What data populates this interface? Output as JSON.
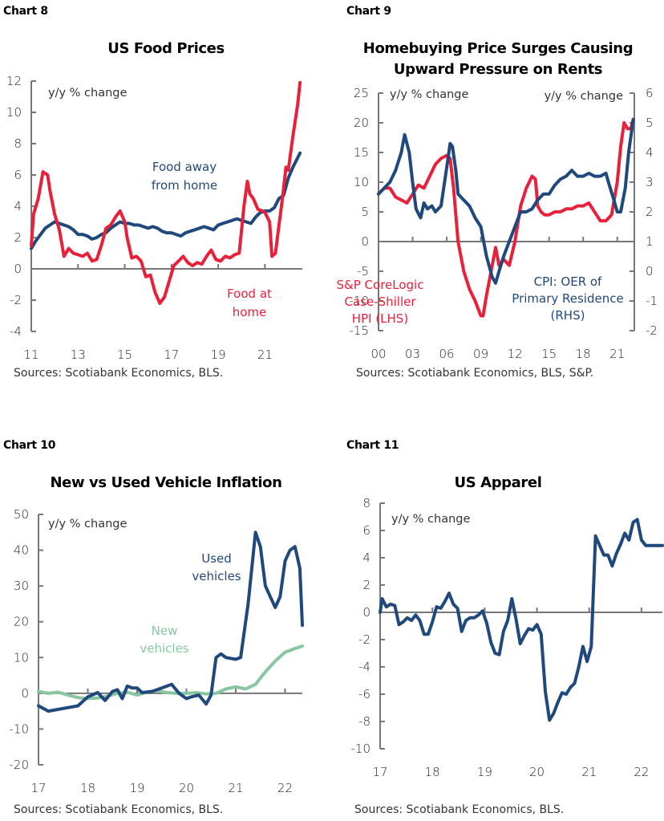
{
  "colors": {
    "red": "#e8203a",
    "navy": "#1f497d",
    "green": "#86c7a0",
    "axis": "#777777"
  },
  "chart_data": [
    {
      "id": "chart8",
      "chart_number": "Chart 8",
      "type": "line",
      "title": "US Food Prices",
      "unit_label": "y/y % change",
      "source": "Sources: Scotiabank Economics, BLS.",
      "xlim": [
        2011,
        2022.6
      ],
      "ylim": [
        -4,
        12
      ],
      "yticks": [
        12,
        10,
        8,
        6,
        4,
        2,
        0,
        -2,
        -4
      ],
      "xticks": [
        {
          "v": 2011,
          "label": "11"
        },
        {
          "v": 2013,
          "label": "13"
        },
        {
          "v": 2015,
          "label": "15"
        },
        {
          "v": 2017,
          "label": "17"
        },
        {
          "v": 2019,
          "label": "19"
        },
        {
          "v": 2021,
          "label": "21"
        }
      ],
      "series": [
        {
          "name": "Food away from home",
          "color": "navy",
          "annotation": [
            "Food away",
            "from home"
          ],
          "x": [
            2011.0,
            2011.2,
            2011.4,
            2011.6,
            2011.8,
            2012.0,
            2012.2,
            2012.4,
            2012.6,
            2012.8,
            2013.0,
            2013.2,
            2013.4,
            2013.6,
            2013.8,
            2014.0,
            2014.2,
            2014.4,
            2014.6,
            2014.8,
            2015.0,
            2015.2,
            2015.4,
            2015.6,
            2015.8,
            2016.0,
            2016.2,
            2016.4,
            2016.6,
            2016.8,
            2017.0,
            2017.2,
            2017.4,
            2017.6,
            2017.8,
            2018.0,
            2018.2,
            2018.4,
            2018.6,
            2018.8,
            2019.0,
            2019.2,
            2019.4,
            2019.6,
            2019.8,
            2020.0,
            2020.2,
            2020.4,
            2020.6,
            2020.8,
            2021.0,
            2021.2,
            2021.4,
            2021.6,
            2021.8,
            2022.0,
            2022.2,
            2022.4,
            2022.5
          ],
          "y": [
            1.3,
            1.8,
            2.2,
            2.6,
            2.8,
            3.0,
            2.9,
            2.8,
            2.7,
            2.5,
            2.2,
            2.2,
            2.1,
            1.9,
            2.0,
            2.2,
            2.3,
            2.6,
            2.8,
            3.0,
            2.9,
            2.9,
            2.8,
            2.8,
            2.7,
            2.6,
            2.7,
            2.6,
            2.4,
            2.3,
            2.3,
            2.2,
            2.1,
            2.3,
            2.4,
            2.5,
            2.6,
            2.7,
            2.6,
            2.5,
            2.8,
            2.9,
            3.0,
            3.1,
            3.2,
            3.1,
            3.0,
            2.9,
            3.3,
            3.6,
            3.7,
            3.7,
            3.9,
            4.5,
            4.7,
            5.8,
            6.5,
            7.1,
            7.4
          ]
        },
        {
          "name": "Food at home",
          "color": "red",
          "annotation": [
            "Food at",
            "home"
          ],
          "x": [
            2011.0,
            2011.1,
            2011.3,
            2011.5,
            2011.7,
            2011.8,
            2012.0,
            2012.2,
            2012.4,
            2012.6,
            2012.8,
            2013.0,
            2013.2,
            2013.4,
            2013.6,
            2013.8,
            2014.0,
            2014.2,
            2014.4,
            2014.6,
            2014.8,
            2015.0,
            2015.1,
            2015.3,
            2015.5,
            2015.7,
            2015.9,
            2016.1,
            2016.3,
            2016.5,
            2016.7,
            2016.9,
            2017.1,
            2017.3,
            2017.5,
            2017.7,
            2017.9,
            2018.1,
            2018.3,
            2018.5,
            2018.7,
            2018.9,
            2019.1,
            2019.3,
            2019.5,
            2019.7,
            2019.9,
            2020.1,
            2020.25,
            2020.35,
            2020.5,
            2020.7,
            2020.9,
            2021.0,
            2021.2,
            2021.3,
            2021.45,
            2021.6,
            2021.75,
            2021.9,
            2022.0,
            2022.2,
            2022.4,
            2022.5
          ],
          "y": [
            1.5,
            3.5,
            4.5,
            6.2,
            6.0,
            5.0,
            3.5,
            2.5,
            0.8,
            1.3,
            1.0,
            0.9,
            0.8,
            1.0,
            0.5,
            0.6,
            1.5,
            2.6,
            2.8,
            3.3,
            3.7,
            3.0,
            2.0,
            0.7,
            0.8,
            0.5,
            -0.5,
            -0.4,
            -1.5,
            -2.2,
            -1.8,
            -0.8,
            0.2,
            0.5,
            0.8,
            0.4,
            0.2,
            0.4,
            0.3,
            0.8,
            1.2,
            0.6,
            0.5,
            0.8,
            0.7,
            0.9,
            1.0,
            4.0,
            5.6,
            4.8,
            4.5,
            3.8,
            3.7,
            3.6,
            3.0,
            0.8,
            1.0,
            2.8,
            4.5,
            6.5,
            6.3,
            8.5,
            10.5,
            11.9
          ]
        }
      ]
    },
    {
      "id": "chart9",
      "chart_number": "Chart 9",
      "type": "line",
      "title": "Homebuying Price Surges Causing Upward Pressure on Rents",
      "title_lines": [
        "Homebuying Price Surges Causing",
        "Upward Pressure on Rents"
      ],
      "unit_label_left": "y/y % change",
      "unit_label_right": "y/y % change",
      "source": "Sources: Scotiabank Economics, BLS, S&P.",
      "xlim": [
        2000,
        2022.5
      ],
      "ylim_left": [
        -15,
        25
      ],
      "ylim_right": [
        -2,
        6
      ],
      "yticks_left": [
        25,
        20,
        15,
        10,
        5,
        0,
        -5,
        -10,
        -15
      ],
      "yticks_right": [
        6,
        5,
        4,
        3,
        2,
        1,
        0,
        -1,
        -2
      ],
      "xticks": [
        {
          "v": 2000,
          "label": "00"
        },
        {
          "v": 2003,
          "label": "03"
        },
        {
          "v": 2006,
          "label": "06"
        },
        {
          "v": 2009,
          "label": "09"
        },
        {
          "v": 2012,
          "label": "12"
        },
        {
          "v": 2015,
          "label": "15"
        },
        {
          "v": 2018,
          "label": "18"
        },
        {
          "v": 2021,
          "label": "21"
        }
      ],
      "series": [
        {
          "name": "S&P CoreLogic Case-Shiller HPI (LHS)",
          "axis": "left",
          "color": "red",
          "annotation": [
            "S&P CoreLogic",
            "Case-Shiller",
            "HPI (LHS)"
          ],
          "x": [
            2000,
            2000.5,
            2001,
            2001.5,
            2002,
            2002.5,
            2003,
            2003.5,
            2004,
            2004.5,
            2005,
            2005.5,
            2006,
            2006.3,
            2006.6,
            2007,
            2007.5,
            2008,
            2008.5,
            2009,
            2009.2,
            2009.5,
            2010,
            2010.3,
            2010.6,
            2011,
            2011.5,
            2012,
            2012.5,
            2013,
            2013.5,
            2013.8,
            2014,
            2014.3,
            2014.6,
            2015,
            2015.5,
            2016,
            2016.5,
            2017,
            2017.5,
            2018,
            2018.5,
            2019,
            2019.5,
            2020,
            2020.5,
            2021,
            2021.3,
            2021.6,
            2021.9,
            2022.2,
            2022.4
          ],
          "y": [
            8,
            9,
            9,
            7.5,
            7,
            6.5,
            8,
            9.5,
            9,
            11,
            13,
            14,
            14.5,
            14,
            9,
            0,
            -5,
            -8,
            -10,
            -12.5,
            -12.5,
            -9,
            -4,
            -1,
            -4,
            -3,
            -4,
            0,
            6,
            9,
            11,
            10.5,
            6,
            5,
            4.5,
            4.5,
            5,
            5,
            5.5,
            5.5,
            6,
            6,
            6.5,
            5,
            3.5,
            3.5,
            4.5,
            10,
            16,
            20,
            19,
            19,
            20.6
          ]
        },
        {
          "name": "CPI: OER of Primary Residence (RHS)",
          "axis": "right",
          "color": "navy",
          "annotation": [
            "CPI: OER of",
            "Primary Residence",
            "(RHS)"
          ],
          "x": [
            2000,
            2000.5,
            2001,
            2001.5,
            2002,
            2002.3,
            2002.7,
            2003,
            2003.3,
            2003.7,
            2004,
            2004.3,
            2004.7,
            2005,
            2005.5,
            2006,
            2006.3,
            2006.5,
            2006.8,
            2007,
            2007.5,
            2008,
            2008.5,
            2009,
            2009.5,
            2010,
            2010.3,
            2010.6,
            2011,
            2011.5,
            2012,
            2012.5,
            2013,
            2013.5,
            2014,
            2014.5,
            2015,
            2015.5,
            2016,
            2016.5,
            2017,
            2017.5,
            2018,
            2018.5,
            2019,
            2019.5,
            2020,
            2020.3,
            2020.7,
            2021,
            2021.3,
            2021.7,
            2022,
            2022.4
          ],
          "y": [
            2.6,
            2.8,
            3.0,
            3.4,
            4.0,
            4.6,
            4.0,
            3.0,
            2.1,
            1.8,
            2.3,
            2.1,
            2.2,
            2.0,
            2.2,
            3.5,
            4.3,
            4.2,
            3.4,
            2.6,
            2.4,
            2.2,
            1.8,
            1.5,
            0.5,
            -0.2,
            -0.4,
            0.0,
            0.5,
            1.0,
            1.5,
            2.0,
            2.0,
            2.1,
            2.4,
            2.6,
            2.6,
            2.9,
            3.1,
            3.2,
            3.4,
            3.2,
            3.2,
            3.3,
            3.2,
            3.2,
            3.3,
            2.9,
            2.4,
            2.0,
            2.0,
            2.8,
            4.0,
            5.1
          ]
        }
      ]
    },
    {
      "id": "chart10",
      "chart_number": "Chart 10",
      "type": "line",
      "title": "New vs Used Vehicle Inflation",
      "unit_label": "y/y  % change",
      "source": "Sources: Scotiabank Economics, BLS.",
      "xlim": [
        2017,
        2022.35
      ],
      "ylim": [
        -20,
        50
      ],
      "yticks": [
        50,
        40,
        30,
        20,
        10,
        0,
        -10,
        -20
      ],
      "xticks": [
        {
          "v": 2017,
          "label": "17"
        },
        {
          "v": 2018,
          "label": "18"
        },
        {
          "v": 2019,
          "label": "19"
        },
        {
          "v": 2020,
          "label": "20"
        },
        {
          "v": 2021,
          "label": "21"
        },
        {
          "v": 2022,
          "label": "22"
        }
      ],
      "series": [
        {
          "name": "New vehicles",
          "color": "green",
          "annotation": [
            "New",
            "vehicles"
          ],
          "x": [
            2017,
            2017.2,
            2017.4,
            2017.6,
            2017.8,
            2018,
            2018.2,
            2018.4,
            2018.6,
            2018.8,
            2019,
            2019.2,
            2019.4,
            2019.6,
            2019.8,
            2020,
            2020.2,
            2020.4,
            2020.6,
            2020.8,
            2021,
            2021.2,
            2021.4,
            2021.6,
            2021.8,
            2022,
            2022.2,
            2022.35
          ],
          "y": [
            0.5,
            0,
            0.3,
            -0.5,
            -1.2,
            -1.5,
            -1.3,
            -0.8,
            0,
            0.3,
            -0.5,
            0.3,
            0.8,
            0.2,
            0,
            0,
            0.2,
            -0.2,
            0,
            1.2,
            1.8,
            1.2,
            2.5,
            6,
            9,
            11.5,
            12.5,
            13.2
          ]
        },
        {
          "name": "Used vehicles",
          "color": "navy",
          "annotation": [
            "Used",
            "vehicles"
          ],
          "x": [
            2017,
            2017.2,
            2017.4,
            2017.6,
            2017.8,
            2018,
            2018.2,
            2018.35,
            2018.5,
            2018.6,
            2018.7,
            2018.8,
            2018.9,
            2019,
            2019.1,
            2019.3,
            2019.5,
            2019.7,
            2019.85,
            2020,
            2020.1,
            2020.25,
            2020.4,
            2020.5,
            2020.6,
            2020.7,
            2020.8,
            2021,
            2021.1,
            2021.25,
            2021.4,
            2021.5,
            2021.6,
            2021.8,
            2021.9,
            2022,
            2022.1,
            2022.2,
            2022.3,
            2022.35
          ],
          "y": [
            -3.5,
            -5,
            -4.5,
            -4,
            -3.5,
            -1,
            0.2,
            -2,
            0.5,
            1,
            -1.5,
            2,
            1.5,
            1.5,
            0.2,
            0.5,
            1.5,
            2.5,
            0,
            -1.5,
            -1,
            -0.5,
            -3,
            -0.5,
            10,
            11,
            10,
            9.5,
            10,
            25,
            45,
            41,
            30,
            24,
            27,
            37,
            40,
            41,
            35,
            19
          ]
        }
      ]
    },
    {
      "id": "chart11",
      "chart_number": "Chart 11",
      "type": "line",
      "title": "US Apparel",
      "unit_label": "y/y % change",
      "source": "Sources: Scotiabank Economics, BLS.",
      "xlim": [
        2017,
        2022.4
      ],
      "ylim": [
        -10,
        8
      ],
      "yticks": [
        8,
        6,
        4,
        2,
        0,
        -2,
        -4,
        -6,
        -8,
        -10
      ],
      "xticks": [
        {
          "v": 2017,
          "label": "17"
        },
        {
          "v": 2018,
          "label": "18"
        },
        {
          "v": 2019,
          "label": "19"
        },
        {
          "v": 2020,
          "label": "20"
        },
        {
          "v": 2021,
          "label": "21"
        },
        {
          "v": 2022,
          "label": "22"
        }
      ],
      "series": [
        {
          "name": "US Apparel",
          "color": "navy",
          "x": [
            2017,
            2017.04,
            2017.12,
            2017.2,
            2017.28,
            2017.36,
            2017.44,
            2017.52,
            2017.6,
            2017.68,
            2017.76,
            2017.84,
            2017.92,
            2018,
            2018.08,
            2018.16,
            2018.24,
            2018.32,
            2018.4,
            2018.48,
            2018.56,
            2018.64,
            2018.72,
            2018.8,
            2018.88,
            2018.96,
            2019.04,
            2019.12,
            2019.2,
            2019.28,
            2019.36,
            2019.44,
            2019.52,
            2019.6,
            2019.68,
            2019.76,
            2019.84,
            2019.92,
            2020,
            2020.08,
            2020.16,
            2020.24,
            2020.32,
            2020.4,
            2020.48,
            2020.56,
            2020.64,
            2020.72,
            2020.8,
            2020.88,
            2020.96,
            2021.04,
            2021.12,
            2021.2,
            2021.28,
            2021.36,
            2021.44,
            2021.52,
            2021.6,
            2021.68,
            2021.76,
            2021.84,
            2021.92,
            2022,
            2022.08,
            2022.16,
            2022.24,
            2022.32,
            2022.4
          ],
          "y": [
            0,
            1,
            0.4,
            0.6,
            0.5,
            -0.9,
            -0.7,
            -0.4,
            -0.6,
            -0.2,
            -0.6,
            -1.6,
            -1.6,
            -0.7,
            0.4,
            0.3,
            0.8,
            1.4,
            0.6,
            0.3,
            -1.4,
            -0.6,
            -0.4,
            -0.4,
            -0.2,
            0.1,
            -0.8,
            -2.2,
            -3.0,
            -3.1,
            -1.4,
            -0.6,
            1.0,
            -0.5,
            -2.3,
            -1.7,
            -1.2,
            -1.3,
            -0.9,
            -1.6,
            -5.8,
            -7.9,
            -7.4,
            -6.6,
            -5.9,
            -6.0,
            -5.5,
            -5.2,
            -4.0,
            -2.5,
            -3.6,
            -2.5,
            5.6,
            4.9,
            4.2,
            4.2,
            3.4,
            4.3,
            5.0,
            5.8,
            5.3,
            6.6,
            6.8,
            5.3,
            4.9,
            4.9,
            4.9,
            4.9,
            4.9
          ]
        }
      ]
    }
  ]
}
